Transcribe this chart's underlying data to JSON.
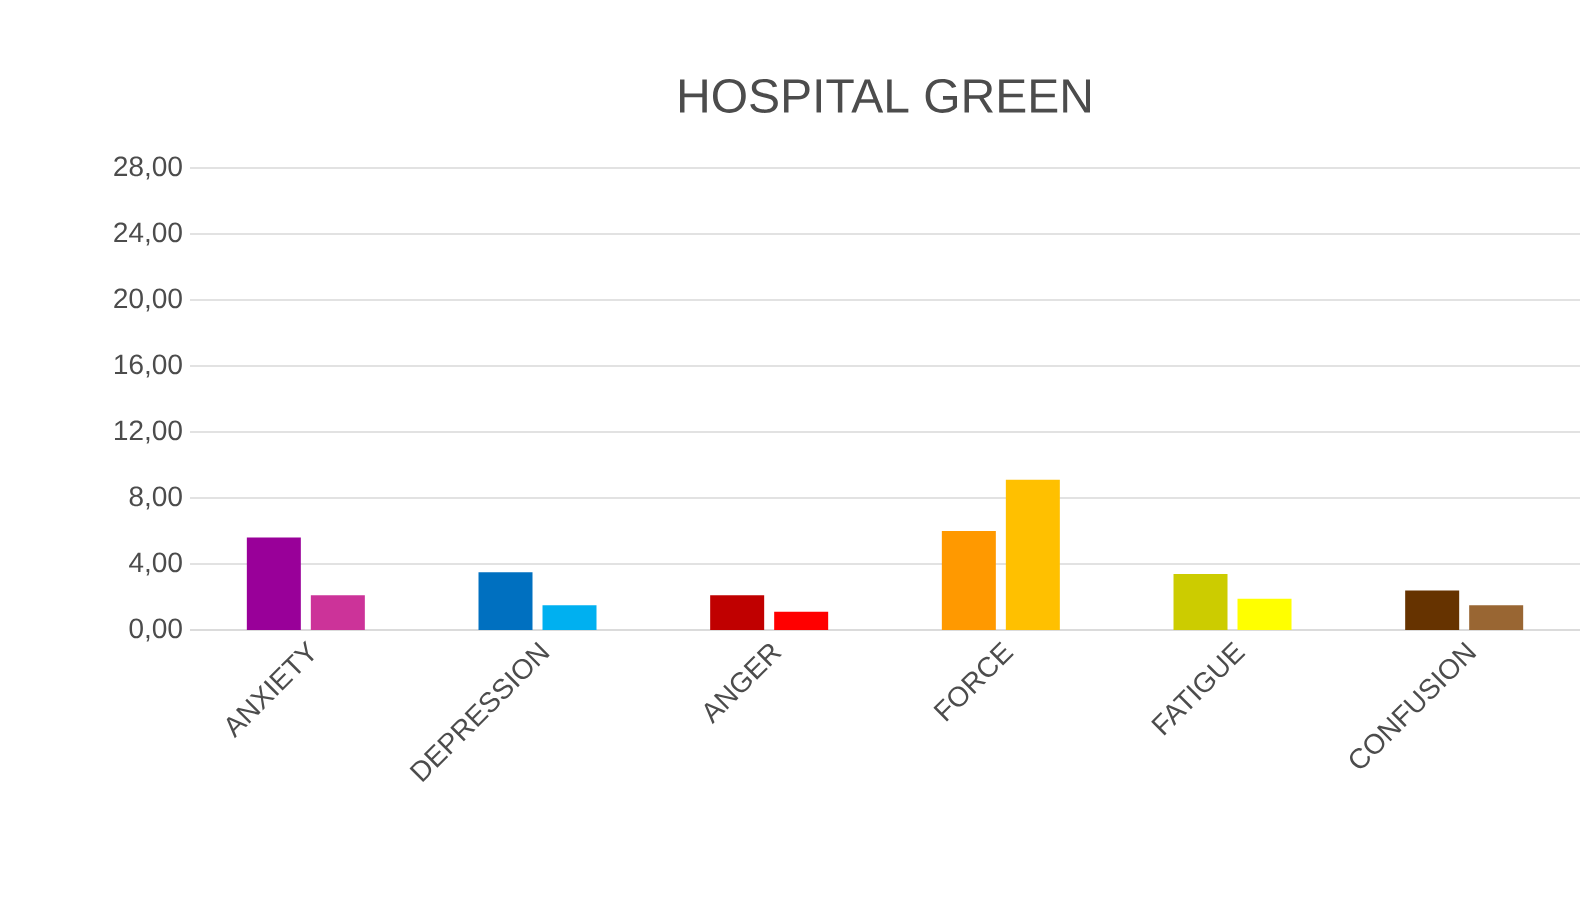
{
  "chart_data": {
    "type": "bar",
    "title": "HOSPITAL GREEN",
    "categories": [
      "ANXIETY",
      "DEPRESSION",
      "ANGER",
      "FORCE",
      "FATIGUE",
      "CONFUSION"
    ],
    "series": [
      {
        "values": [
          5.6,
          3.5,
          2.1,
          6.0,
          3.4,
          2.4
        ],
        "colors": [
          "#990099",
          "#0070c0",
          "#c00000",
          "#ff9900",
          "#cccc00",
          "#663300"
        ]
      },
      {
        "values": [
          2.1,
          1.5,
          1.1,
          9.1,
          1.9,
          1.5
        ],
        "colors": [
          "#cc3399",
          "#00b0f0",
          "#ff0000",
          "#ffc000",
          "#ffff00",
          "#996633"
        ]
      }
    ],
    "ylim": [
      0,
      28
    ],
    "yticks": [
      {
        "value": 0,
        "label": "0,00"
      },
      {
        "value": 4,
        "label": "4,00"
      },
      {
        "value": 8,
        "label": "8,00"
      },
      {
        "value": 12,
        "label": "12,00"
      },
      {
        "value": 16,
        "label": "16,00"
      },
      {
        "value": 20,
        "label": "20,00"
      },
      {
        "value": 24,
        "label": "24,00"
      },
      {
        "value": 28,
        "label": "28,00"
      }
    ],
    "grid": "y"
  }
}
